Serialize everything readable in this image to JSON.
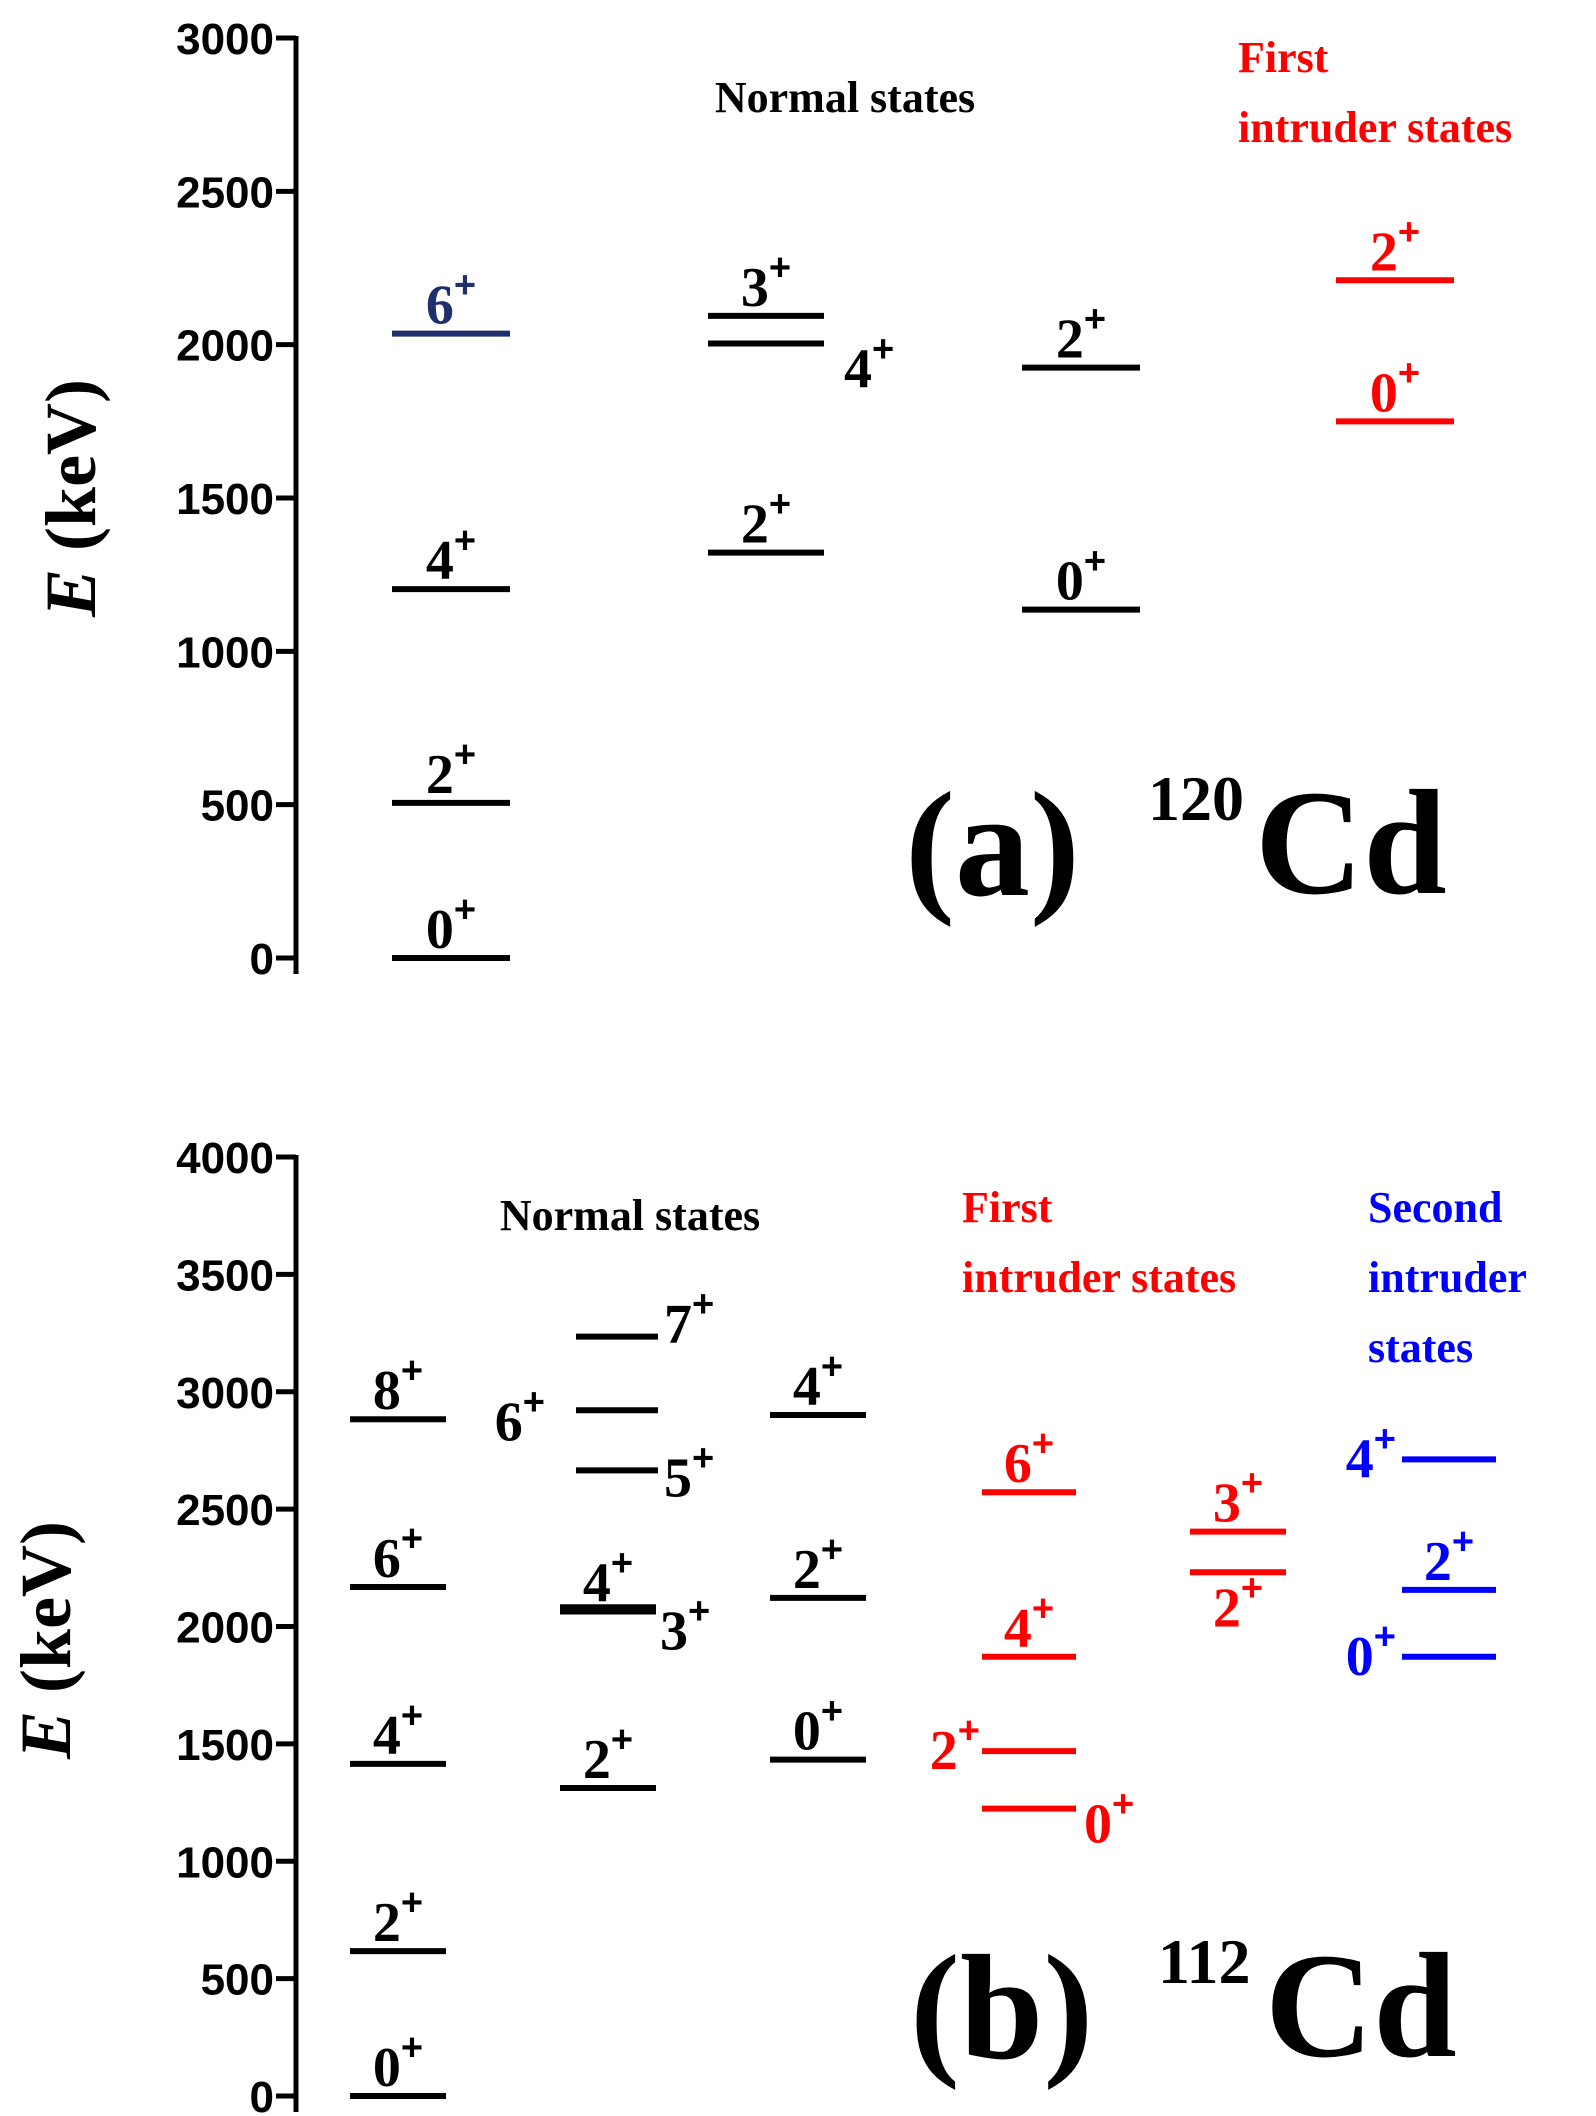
{
  "colors": {
    "normal": "#000000",
    "first_intruder": "#ff0000",
    "second_intruder": "#0000ff",
    "navy": "#1f2f6e"
  },
  "chart_data": [
    {
      "type": "level-scheme",
      "panel_label": "(a)",
      "isotope_mass": "120",
      "isotope_symbol": "Cd",
      "ylabel_italic": "E",
      "ylabel_unit": "(keV)",
      "ylim": [
        0,
        3000
      ],
      "ticks": [
        "0",
        "500",
        "1000",
        "1500",
        "2000",
        "2500",
        "3000"
      ],
      "groups": [
        {
          "label_lines": [
            "Normal states"
          ],
          "color": "#000000"
        },
        {
          "label_lines": [
            "First",
            "intruder states"
          ],
          "color": "#ff0000"
        }
      ],
      "levels": [
        {
          "spin": "0",
          "parity": "+",
          "energy": 0,
          "color": "#000000"
        },
        {
          "spin": "2",
          "parity": "+",
          "energy": 506,
          "color": "#000000"
        },
        {
          "spin": "4",
          "parity": "+",
          "energy": 1203,
          "color": "#000000"
        },
        {
          "spin": "6",
          "parity": "+",
          "energy": 2036,
          "color": "#1f2f6e"
        },
        {
          "spin": "2",
          "parity": "+",
          "energy": 1322,
          "color": "#000000"
        },
        {
          "spin": "4",
          "parity": "+",
          "energy": 2004,
          "color": "#000000"
        },
        {
          "spin": "3",
          "parity": "+",
          "energy": 2094,
          "color": "#000000"
        },
        {
          "spin": "0",
          "parity": "+",
          "energy": 1136,
          "color": "#000000"
        },
        {
          "spin": "2",
          "parity": "+",
          "energy": 1925,
          "color": "#000000"
        },
        {
          "spin": "0",
          "parity": "+",
          "energy": 1750,
          "color": "#ff0000"
        },
        {
          "spin": "2",
          "parity": "+",
          "energy": 2210,
          "color": "#ff0000"
        }
      ]
    },
    {
      "type": "level-scheme",
      "panel_label": "(b)",
      "isotope_mass": "112",
      "isotope_symbol": "Cd",
      "ylabel_italic": "E",
      "ylabel_unit": "(keV)",
      "ylim": [
        0,
        4000
      ],
      "ticks": [
        "0",
        "500",
        "1000",
        "1500",
        "2000",
        "2500",
        "3000",
        "3500",
        "4000"
      ],
      "groups": [
        {
          "label_lines": [
            "Normal states"
          ],
          "color": "#000000"
        },
        {
          "label_lines": [
            "First",
            "intruder states"
          ],
          "color": "#ff0000"
        },
        {
          "label_lines": [
            "Second",
            "intruder",
            "states"
          ],
          "color": "#0000ff"
        }
      ],
      "levels": [
        {
          "spin": "0",
          "parity": "+",
          "energy": 0,
          "color": "#000000"
        },
        {
          "spin": "2",
          "parity": "+",
          "energy": 617,
          "color": "#000000"
        },
        {
          "spin": "4",
          "parity": "+",
          "energy": 1415,
          "color": "#000000"
        },
        {
          "spin": "6",
          "parity": "+",
          "energy": 2168,
          "color": "#000000"
        },
        {
          "spin": "8",
          "parity": "+",
          "energy": 2883,
          "color": "#000000"
        },
        {
          "spin": "2",
          "parity": "+",
          "energy": 1312,
          "color": "#000000"
        },
        {
          "spin": "4",
          "parity": "+",
          "energy": 2064,
          "color": "#000000"
        },
        {
          "spin": "3",
          "parity": "+",
          "energy": 2082,
          "color": "#000000"
        },
        {
          "spin": "5",
          "parity": "+",
          "energy": 2665,
          "color": "#000000"
        },
        {
          "spin": "6",
          "parity": "+",
          "energy": 2921,
          "color": "#000000"
        },
        {
          "spin": "7",
          "parity": "+",
          "energy": 3235,
          "color": "#000000"
        },
        {
          "spin": "0",
          "parity": "+",
          "energy": 1433,
          "color": "#000000"
        },
        {
          "spin": "2",
          "parity": "+",
          "energy": 2122,
          "color": "#000000"
        },
        {
          "spin": "4",
          "parity": "+",
          "energy": 2901,
          "color": "#000000"
        },
        {
          "spin": "0",
          "parity": "+",
          "energy": 1224,
          "color": "#ff0000"
        },
        {
          "spin": "2",
          "parity": "+",
          "energy": 1469,
          "color": "#ff0000"
        },
        {
          "spin": "4",
          "parity": "+",
          "energy": 1871,
          "color": "#ff0000"
        },
        {
          "spin": "6",
          "parity": "+",
          "energy": 2572,
          "color": "#ff0000"
        },
        {
          "spin": "2",
          "parity": "+",
          "energy": 2231,
          "color": "#ff0000"
        },
        {
          "spin": "3",
          "parity": "+",
          "energy": 2404,
          "color": "#ff0000"
        },
        {
          "spin": "0",
          "parity": "+",
          "energy": 1871,
          "color": "#0000ff"
        },
        {
          "spin": "2",
          "parity": "+",
          "energy": 2156,
          "color": "#0000ff"
        },
        {
          "spin": "4",
          "parity": "+",
          "energy": 2712,
          "color": "#0000ff"
        }
      ]
    }
  ]
}
